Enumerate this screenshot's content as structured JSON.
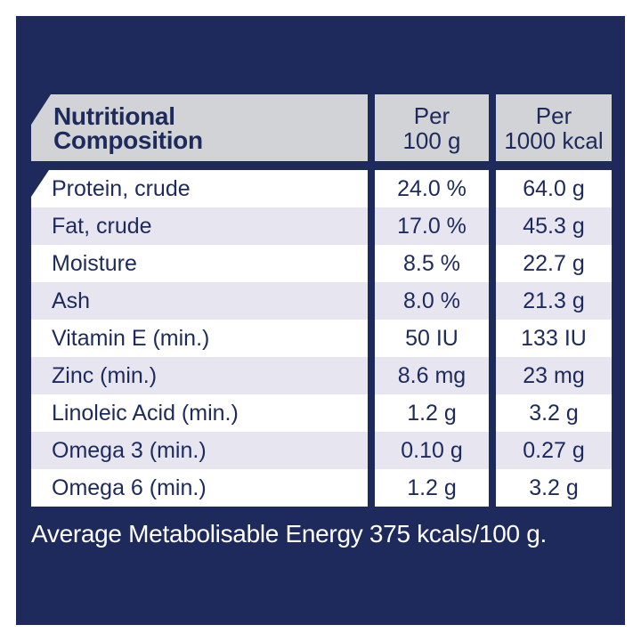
{
  "colors": {
    "panel_navy": "#1e2a5b",
    "header_gray": "#d2d3d6",
    "row_alt_lavender": "#e6e5f0",
    "row_white": "#ffffff",
    "text_navy": "#1e2a5b",
    "footer_text": "#ffffff"
  },
  "table": {
    "header": {
      "composition": "Nutritional\nComposition",
      "per_100g": "Per\n100 g",
      "per_1000kcal": "Per\n1000 kcal"
    },
    "rows": [
      {
        "label": "Protein, crude",
        "per_100g": "24.0 %",
        "per_1000kcal": "64.0 g"
      },
      {
        "label": "Fat, crude",
        "per_100g": "17.0 %",
        "per_1000kcal": "45.3 g"
      },
      {
        "label": "Moisture",
        "per_100g": "8.5 %",
        "per_1000kcal": "22.7 g"
      },
      {
        "label": "Ash",
        "per_100g": "8.0 %",
        "per_1000kcal": "21.3 g"
      },
      {
        "label": "Vitamin E (min.)",
        "per_100g": "50 IU",
        "per_1000kcal": "133 IU"
      },
      {
        "label": "Zinc (min.)",
        "per_100g": "8.6 mg",
        "per_1000kcal": "23 mg"
      },
      {
        "label": "Linoleic Acid (min.)",
        "per_100g": "1.2 g",
        "per_1000kcal": "3.2 g"
      },
      {
        "label": "Omega 3 (min.)",
        "per_100g": "0.10 g",
        "per_1000kcal": "0.27 g"
      },
      {
        "label": "Omega 6 (min.)",
        "per_100g": "1.2 g",
        "per_1000kcal": "3.2 g"
      }
    ]
  },
  "footer": {
    "text": "Average Metabolisable Energy 375 kcals/100 g."
  }
}
